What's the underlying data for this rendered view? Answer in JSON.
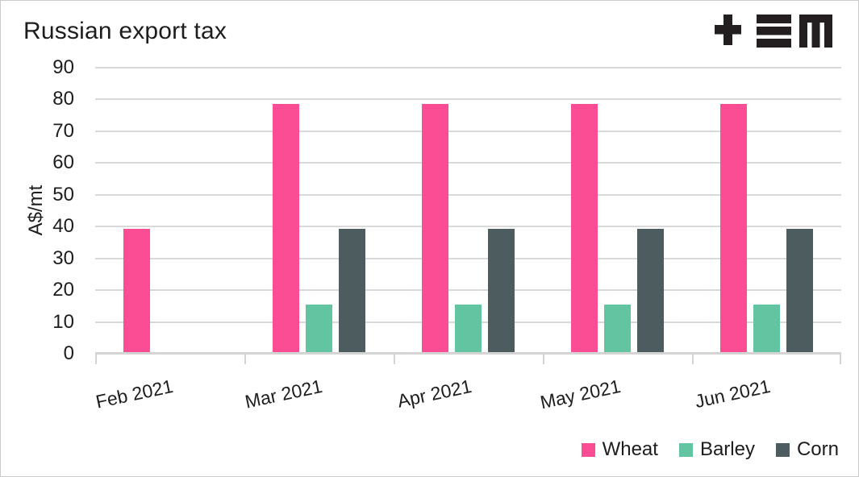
{
  "figure": {
    "title": "Russian export tax",
    "logo_icon": "tem-logo"
  },
  "colors": {
    "text": "#1d1d1d",
    "gridline": "#d9d9d9",
    "axis": "#d4d4d4",
    "background": "#ffffff",
    "frame_border": "#cbcbcb",
    "logo": "#231f20",
    "wheat": "#fb4d94",
    "barley": "#62c4a1",
    "corn": "#4c5c5f"
  },
  "chart_data": {
    "type": "bar",
    "title": "Russian export tax",
    "xlabel": "",
    "ylabel": "A$/mt",
    "categories": [
      "Feb 2021",
      "Mar 2021",
      "Apr 2021",
      "May 2021",
      "Jun 2021"
    ],
    "series": [
      {
        "name": "Wheat",
        "color": "#fb4d94",
        "values": [
          39,
          78.5,
          78.5,
          78.5,
          78.5
        ]
      },
      {
        "name": "Barley",
        "color": "#62c4a1",
        "values": [
          0,
          15,
          15,
          15,
          15
        ]
      },
      {
        "name": "Corn",
        "color": "#4c5c5f",
        "values": [
          0,
          39,
          39,
          39,
          39
        ]
      }
    ],
    "ylim": [
      0,
      90
    ],
    "ytick_step": 10,
    "grid": "horizontal",
    "legend_position": "bottom-right",
    "x_tick_rotation_deg": -12
  }
}
